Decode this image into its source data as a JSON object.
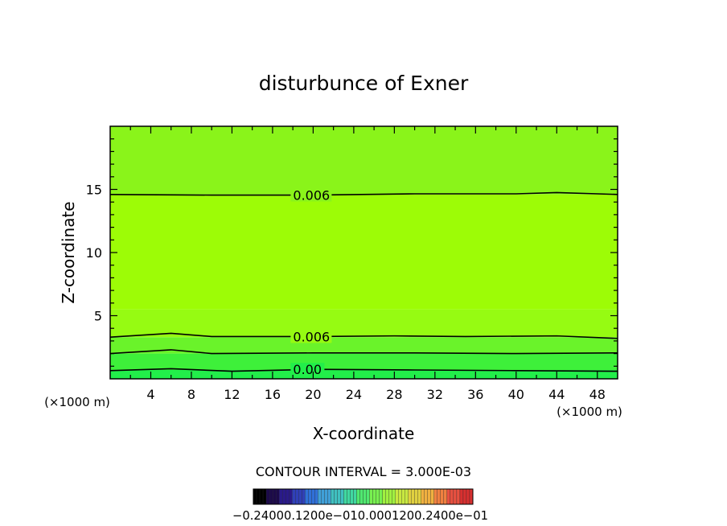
{
  "chart_data": {
    "type": "contour",
    "title": "disturbunce of Exner",
    "xlabel": "X-coordinate",
    "ylabel": "Z-coordinate",
    "x_unit_label": "(×1000 m)",
    "y_unit_label": "(×1000 m)",
    "xlim": [
      0,
      50
    ],
    "ylim": [
      0,
      20
    ],
    "x_ticks": [
      4,
      8,
      12,
      16,
      20,
      24,
      28,
      32,
      36,
      40,
      44,
      48
    ],
    "y_ticks": [
      5,
      10,
      15
    ],
    "contour_interval_text": "CONTOUR INTERVAL = 3.000E-03",
    "contour_lines": [
      {
        "level": 0.006,
        "label": "0.006",
        "points": [
          [
            0,
            14.6
          ],
          [
            10,
            14.55
          ],
          [
            20,
            14.55
          ],
          [
            30,
            14.65
          ],
          [
            40,
            14.65
          ],
          [
            44,
            14.75
          ],
          [
            50,
            14.6
          ]
        ]
      },
      {
        "level": 0.006,
        "label": "0.006",
        "points": [
          [
            0,
            3.3
          ],
          [
            6,
            3.6
          ],
          [
            10,
            3.35
          ],
          [
            20,
            3.35
          ],
          [
            28,
            3.4
          ],
          [
            35,
            3.35
          ],
          [
            44,
            3.4
          ],
          [
            50,
            3.2
          ]
        ]
      },
      {
        "level": 0.003,
        "label": "",
        "points": [
          [
            0,
            2.0
          ],
          [
            6,
            2.3
          ],
          [
            10,
            2.0
          ],
          [
            20,
            2.05
          ],
          [
            30,
            2.05
          ],
          [
            40,
            2.0
          ],
          [
            50,
            2.05
          ]
        ]
      },
      {
        "level": 0.0,
        "label": "0.00",
        "points": [
          [
            0,
            0.65
          ],
          [
            6,
            0.8
          ],
          [
            12,
            0.6
          ],
          [
            20,
            0.75
          ],
          [
            30,
            0.7
          ],
          [
            40,
            0.65
          ],
          [
            50,
            0.6
          ]
        ]
      }
    ],
    "fill_bands": [
      {
        "z_from": 0,
        "z_to": 0.7,
        "color": "#22ee4a"
      },
      {
        "z_from": 0.7,
        "z_to": 2.0,
        "color": "#3ef03a"
      },
      {
        "z_from": 2.0,
        "z_to": 3.3,
        "color": "#6af32a"
      },
      {
        "z_from": 3.3,
        "z_to": 5.5,
        "color": "#96fb12"
      },
      {
        "z_from": 5.5,
        "z_to": 14.6,
        "color": "#9dfc06"
      },
      {
        "z_from": 14.6,
        "z_to": 20,
        "color": "#8af41a"
      }
    ],
    "colorbar": {
      "tick_labels": [
        "-0.2400",
        "-0.1200e-01",
        "-0.1200e-01",
        "0.000",
        "0.1200e-01",
        "0.1200e-01",
        "0.2400e-01"
      ],
      "tick_text": "−0.24000.1200e−010.0001200.2400e−01",
      "colors": [
        "#000000",
        "#1c0a4a",
        "#2a1a8a",
        "#3040b8",
        "#3070d8",
        "#40a0d8",
        "#40c0c0",
        "#40d8a0",
        "#50e870",
        "#78f050",
        "#a0f040",
        "#c8e840",
        "#e0d040",
        "#f0b040",
        "#f08040",
        "#e85040",
        "#d83030"
      ]
    }
  }
}
